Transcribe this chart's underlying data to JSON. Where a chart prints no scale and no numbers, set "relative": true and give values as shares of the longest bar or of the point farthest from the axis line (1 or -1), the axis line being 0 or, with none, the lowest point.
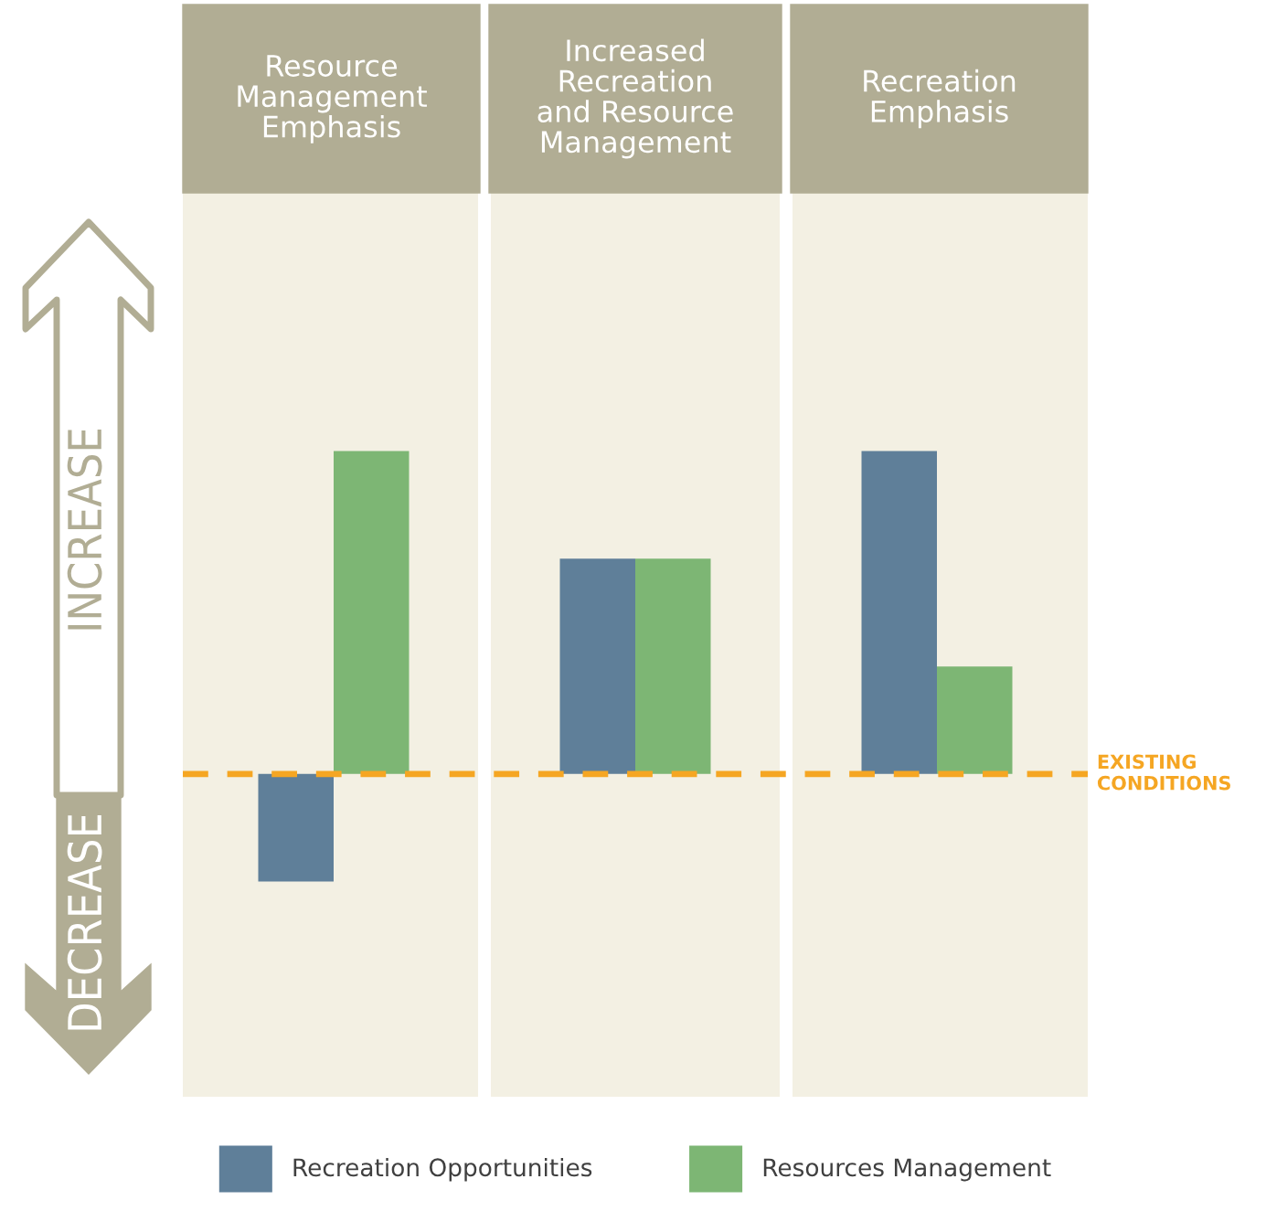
{
  "chart_data": {
    "type": "bar",
    "relative": true,
    "categories": [
      "Resource Management Emphasis",
      "Increased Recreation and Resource Management",
      "Recreation Emphasis"
    ],
    "series": [
      {
        "name": "Recreation Opportunities",
        "color": "#5f7f99",
        "values": [
          -0.333,
          0.667,
          1
        ]
      },
      {
        "name": "Resources Management",
        "color": "#7db674",
        "values": [
          1,
          0.667,
          0.333
        ]
      }
    ],
    "ref_lines": [
      {
        "axis": "y",
        "value": 0,
        "label": "EXISTING CONDITIONS",
        "color": "#f5a623",
        "line_style": "dashed"
      }
    ],
    "annotations": [
      "INCREASE",
      "DECREASE"
    ],
    "legend": "bottom"
  }
}
